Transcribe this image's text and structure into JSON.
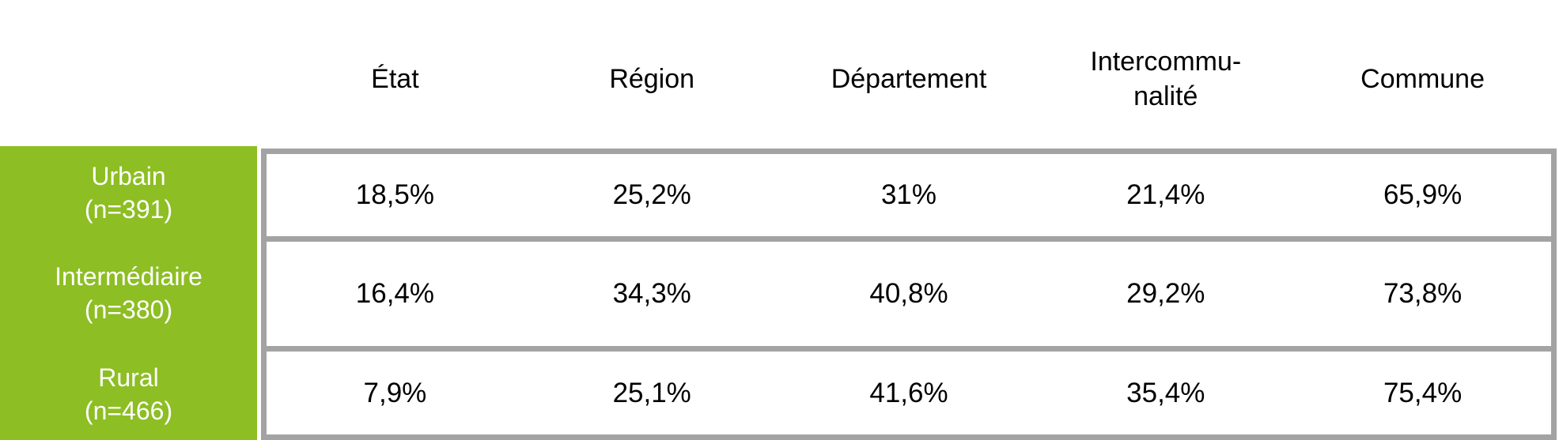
{
  "chart_data": {
    "type": "table",
    "columns": [
      "État",
      "Région",
      "Département",
      "Intercommu-\nnalité",
      "Commune"
    ],
    "rows": [
      {
        "label": "Urbain\n(n=391)",
        "values": [
          "18,5%",
          "25,2%",
          "31%",
          "21,4%",
          "65,9%"
        ],
        "values_numeric": [
          18.5,
          25.2,
          31,
          21.4,
          65.9
        ]
      },
      {
        "label": "Intermédiaire\n(n=380)",
        "values": [
          "16,4%",
          "34,3%",
          "40,8%",
          "29,2%",
          "73,8%"
        ],
        "values_numeric": [
          16.4,
          34.3,
          40.8,
          29.2,
          73.8
        ]
      },
      {
        "label": "Rural\n(n=466)",
        "values": [
          "7,9%",
          "25,1%",
          "41,6%",
          "35,4%",
          "75,4%"
        ],
        "values_numeric": [
          7.9,
          25.1,
          41.6,
          35.4,
          75.4
        ]
      }
    ],
    "colors": {
      "row_header_bg": "#8dbe23",
      "row_header_text": "#ffffff",
      "table_border": "#a3a3a3",
      "header_text": "#000000",
      "value_text": "#000000"
    },
    "legend_position": "none",
    "grid": "horizontal-borders-only"
  }
}
